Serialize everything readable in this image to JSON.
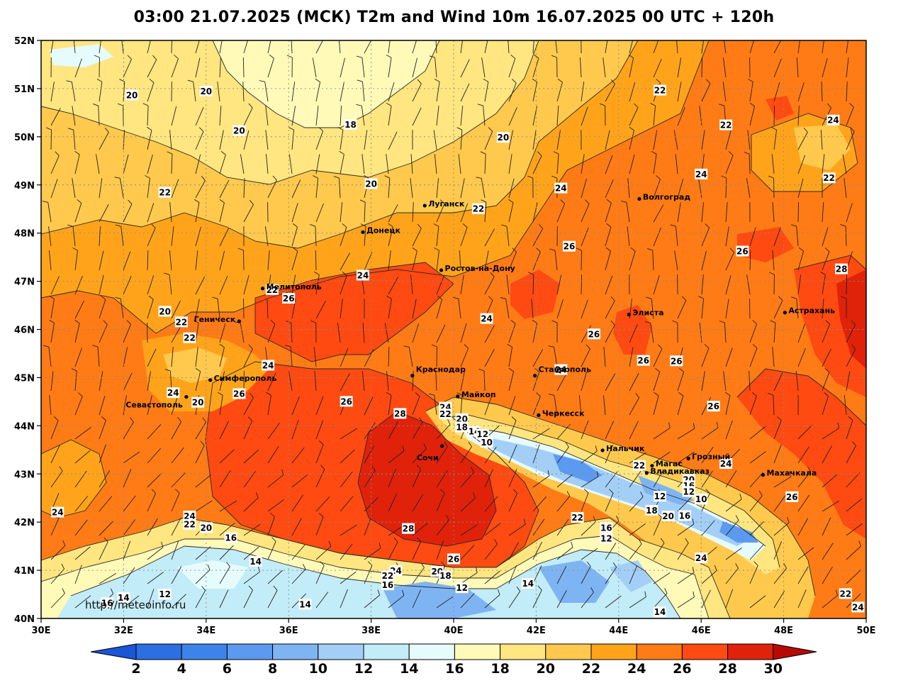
{
  "title": "03:00 21.07.2025 (МСК) T2m and Wind 10m 16.07.2025 00 UTC + 120h",
  "credit": "http://meteoinfo.ru",
  "lat_ticks": [
    "52N",
    "51N",
    "50N",
    "49N",
    "48N",
    "47N",
    "46N",
    "45N",
    "44N",
    "43N",
    "42N",
    "41N",
    "40N"
  ],
  "lon_ticks": [
    "30E",
    "32E",
    "34E",
    "36E",
    "38E",
    "40E",
    "42E",
    "44E",
    "46E",
    "48E",
    "50E"
  ],
  "cities": [
    {
      "name": "Луганск",
      "lon": 39.3,
      "lat": 48.57
    },
    {
      "name": "Донецк",
      "lon": 37.8,
      "lat": 48.02
    },
    {
      "name": "Волгоград",
      "lon": 44.5,
      "lat": 48.71
    },
    {
      "name": "Ростов-на-Дону",
      "lon": 39.7,
      "lat": 47.23
    },
    {
      "name": "Мелитополь",
      "lon": 35.37,
      "lat": 46.85
    },
    {
      "name": "Геническ",
      "lon": 34.8,
      "lat": 46.17
    },
    {
      "name": "Элиста",
      "lon": 44.25,
      "lat": 46.31
    },
    {
      "name": "Астрахань",
      "lon": 48.03,
      "lat": 46.35
    },
    {
      "name": "Краснодар",
      "lon": 39.0,
      "lat": 45.04
    },
    {
      "name": "Ставрополь",
      "lon": 41.97,
      "lat": 45.04
    },
    {
      "name": "Симферополь",
      "lon": 34.1,
      "lat": 44.95
    },
    {
      "name": "Севастополь",
      "lon": 33.52,
      "lat": 44.6
    },
    {
      "name": "Майкоп",
      "lon": 40.1,
      "lat": 44.61
    },
    {
      "name": "Черкесск",
      "lon": 42.06,
      "lat": 44.22
    },
    {
      "name": "Сочи",
      "lon": 39.72,
      "lat": 43.58
    },
    {
      "name": "Нальчик",
      "lon": 43.61,
      "lat": 43.49
    },
    {
      "name": "Магас",
      "lon": 44.81,
      "lat": 43.17
    },
    {
      "name": "Грозный",
      "lon": 45.69,
      "lat": 43.32
    },
    {
      "name": "Владикавказ",
      "lon": 44.68,
      "lat": 43.02
    },
    {
      "name": "Махачкала",
      "lon": 47.5,
      "lat": 42.98
    }
  ],
  "isotherm_labels": [
    {
      "t": "20",
      "lon": 32.2,
      "lat": 50.86
    },
    {
      "t": "20",
      "lon": 34.0,
      "lat": 50.94
    },
    {
      "t": "20",
      "lon": 34.8,
      "lat": 50.12
    },
    {
      "t": "18",
      "lon": 37.5,
      "lat": 50.25
    },
    {
      "t": "20",
      "lon": 41.2,
      "lat": 49.98
    },
    {
      "t": "22",
      "lon": 45.0,
      "lat": 50.96
    },
    {
      "t": "22",
      "lon": 46.6,
      "lat": 50.24
    },
    {
      "t": "24",
      "lon": 49.2,
      "lat": 50.34
    },
    {
      "t": "22",
      "lon": 33.0,
      "lat": 48.84
    },
    {
      "t": "20",
      "lon": 38.0,
      "lat": 49.02
    },
    {
      "t": "24",
      "lon": 42.6,
      "lat": 48.93
    },
    {
      "t": "24",
      "lon": 46.0,
      "lat": 49.22
    },
    {
      "t": "22",
      "lon": 49.1,
      "lat": 49.14
    },
    {
      "t": "22",
      "lon": 40.6,
      "lat": 48.5
    },
    {
      "t": "26",
      "lon": 42.8,
      "lat": 47.72
    },
    {
      "t": "26",
      "lon": 47.0,
      "lat": 47.62
    },
    {
      "t": "28",
      "lon": 49.4,
      "lat": 47.25
    },
    {
      "t": "24",
      "lon": 37.8,
      "lat": 47.12
    },
    {
      "t": "22",
      "lon": 35.6,
      "lat": 46.82
    },
    {
      "t": "26",
      "lon": 36.0,
      "lat": 46.64
    },
    {
      "t": "20",
      "lon": 33.0,
      "lat": 46.37
    },
    {
      "t": "22",
      "lon": 33.4,
      "lat": 46.15
    },
    {
      "t": "22",
      "lon": 33.6,
      "lat": 45.82
    },
    {
      "t": "24",
      "lon": 40.8,
      "lat": 46.22
    },
    {
      "t": "26",
      "lon": 43.4,
      "lat": 45.9
    },
    {
      "t": "26",
      "lon": 44.6,
      "lat": 45.35
    },
    {
      "t": "26",
      "lon": 45.4,
      "lat": 45.34
    },
    {
      "t": "24",
      "lon": 35.5,
      "lat": 45.25
    },
    {
      "t": "24",
      "lon": 42.6,
      "lat": 45.16
    },
    {
      "t": "24",
      "lon": 33.2,
      "lat": 44.68
    },
    {
      "t": "20",
      "lon": 33.8,
      "lat": 44.48
    },
    {
      "t": "26",
      "lon": 34.8,
      "lat": 44.66
    },
    {
      "t": "26",
      "lon": 37.4,
      "lat": 44.5
    },
    {
      "t": "28",
      "lon": 38.7,
      "lat": 44.25
    },
    {
      "t": "24",
      "lon": 39.8,
      "lat": 44.38
    },
    {
      "t": "22",
      "lon": 39.8,
      "lat": 44.24
    },
    {
      "t": "20",
      "lon": 40.2,
      "lat": 44.14
    },
    {
      "t": "18",
      "lon": 40.2,
      "lat": 43.97
    },
    {
      "t": "14",
      "lon": 40.5,
      "lat": 43.88
    },
    {
      "t": "12",
      "lon": 40.7,
      "lat": 43.82
    },
    {
      "t": "10",
      "lon": 40.8,
      "lat": 43.65
    },
    {
      "t": "26",
      "lon": 46.3,
      "lat": 44.4
    },
    {
      "t": "22",
      "lon": 44.5,
      "lat": 43.17
    },
    {
      "t": "24",
      "lon": 46.6,
      "lat": 43.21
    },
    {
      "t": "20",
      "lon": 45.7,
      "lat": 42.88
    },
    {
      "t": "16",
      "lon": 45.7,
      "lat": 42.75
    },
    {
      "t": "12",
      "lon": 45.7,
      "lat": 42.63
    },
    {
      "t": "10",
      "lon": 46.0,
      "lat": 42.47
    },
    {
      "t": "12",
      "lon": 45.0,
      "lat": 42.53
    },
    {
      "t": "18",
      "lon": 44.8,
      "lat": 42.24
    },
    {
      "t": "20",
      "lon": 45.2,
      "lat": 42.12
    },
    {
      "t": "16",
      "lon": 45.6,
      "lat": 42.13
    },
    {
      "t": "26",
      "lon": 48.2,
      "lat": 42.52
    },
    {
      "t": "24",
      "lon": 30.4,
      "lat": 42.2
    },
    {
      "t": "24",
      "lon": 33.6,
      "lat": 42.12
    },
    {
      "t": "22",
      "lon": 33.6,
      "lat": 41.95
    },
    {
      "t": "20",
      "lon": 34.0,
      "lat": 41.88
    },
    {
      "t": "16",
      "lon": 34.6,
      "lat": 41.67
    },
    {
      "t": "28",
      "lon": 38.9,
      "lat": 41.86
    },
    {
      "t": "22",
      "lon": 43.0,
      "lat": 42.09
    },
    {
      "t": "16",
      "lon": 43.7,
      "lat": 41.88
    },
    {
      "t": "12",
      "lon": 43.7,
      "lat": 41.66
    },
    {
      "t": "14",
      "lon": 35.2,
      "lat": 41.18
    },
    {
      "t": "26",
      "lon": 40.0,
      "lat": 41.23
    },
    {
      "t": "24",
      "lon": 46.0,
      "lat": 41.25
    },
    {
      "t": "24",
      "lon": 38.6,
      "lat": 40.99
    },
    {
      "t": "22",
      "lon": 38.4,
      "lat": 40.88
    },
    {
      "t": "20",
      "lon": 39.6,
      "lat": 40.97
    },
    {
      "t": "18",
      "lon": 39.8,
      "lat": 40.88
    },
    {
      "t": "16",
      "lon": 38.4,
      "lat": 40.69
    },
    {
      "t": "12",
      "lon": 40.2,
      "lat": 40.63
    },
    {
      "t": "14",
      "lon": 41.8,
      "lat": 40.72
    },
    {
      "t": "12",
      "lon": 33.0,
      "lat": 40.5
    },
    {
      "t": "14",
      "lon": 32.0,
      "lat": 40.43
    },
    {
      "t": "16",
      "lon": 31.6,
      "lat": 40.32
    },
    {
      "t": "14",
      "lon": 36.4,
      "lat": 40.29
    },
    {
      "t": "22",
      "lon": 49.5,
      "lat": 40.51
    },
    {
      "t": "24",
      "lon": 49.8,
      "lat": 40.23
    },
    {
      "t": "14",
      "lon": 45.0,
      "lat": 40.13
    }
  ],
  "colorbar": {
    "ticks": [
      "2",
      "4",
      "6",
      "8",
      "10",
      "12",
      "14",
      "16",
      "18",
      "20",
      "22",
      "24",
      "26",
      "28",
      "30"
    ],
    "colors": [
      "#2b6fe0",
      "#3d84ea",
      "#5b9aef",
      "#7fb4f3",
      "#a3cff7",
      "#c2ecf7",
      "#e6fbfb",
      "#fffab8",
      "#ffe680",
      "#ffc94d",
      "#ffa41a",
      "#ff7b16",
      "#ff4a12",
      "#e0220b"
    ],
    "under": "#1a56d6",
    "over": "#b80a04"
  }
}
